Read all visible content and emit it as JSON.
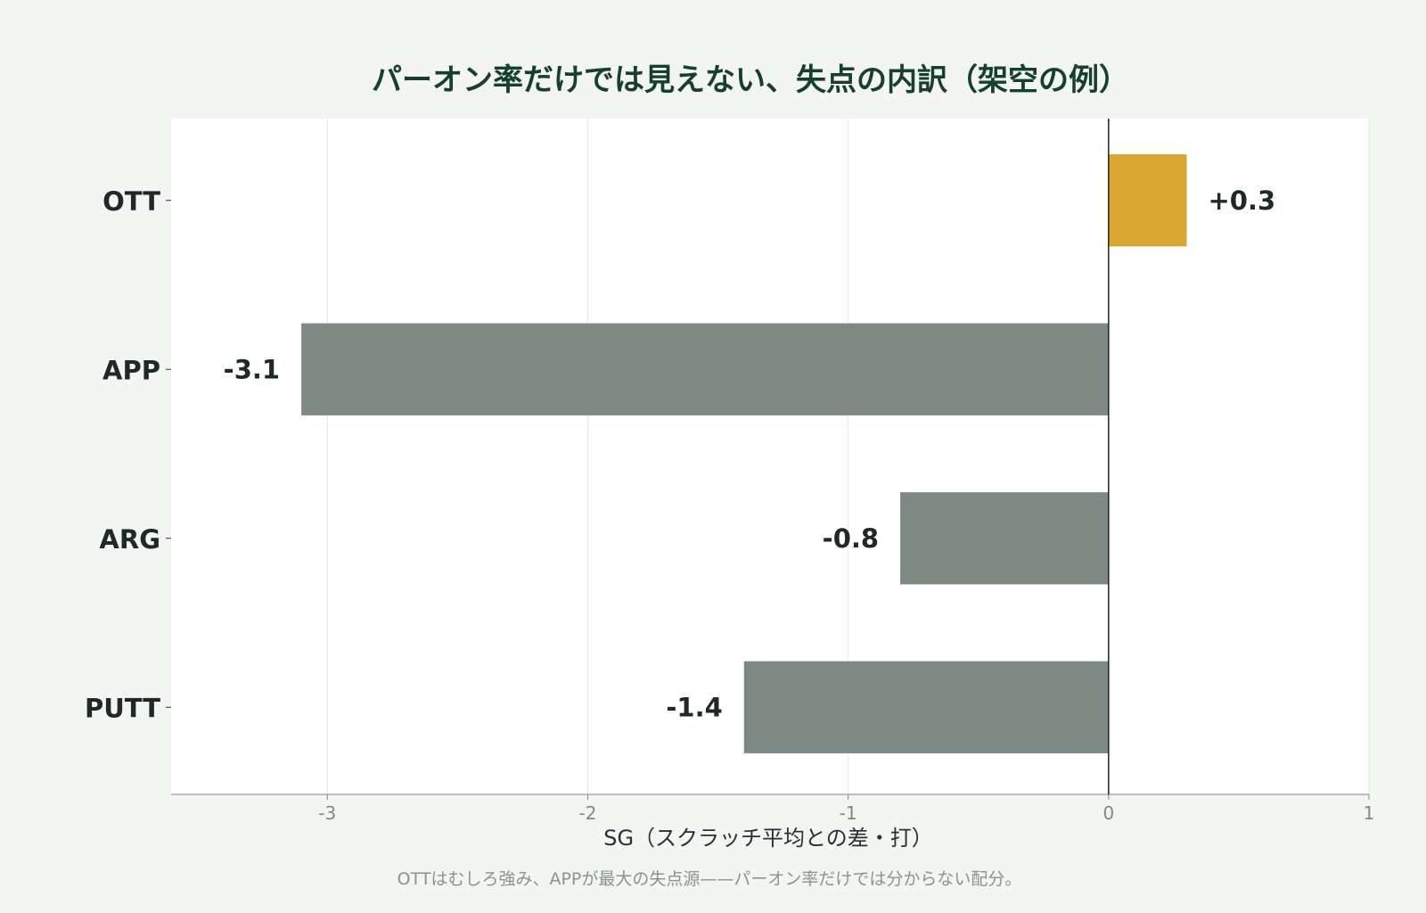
{
  "chart_data": {
    "type": "bar",
    "orientation": "horizontal",
    "title": "パーオン率だけでは見えない、失点の内訳（架空の例）",
    "xlabel": "SG（スクラッチ平均との差・打）",
    "caption": "OTTはむしろ強み、APPが最大の失点源——パーオン率だけでは分からない配分。",
    "categories": [
      "OTT",
      "APP",
      "ARG",
      "PUTT"
    ],
    "values": [
      0.3,
      -3.1,
      -0.8,
      -1.4
    ],
    "value_labels": [
      "+0.3",
      "-3.1",
      "-0.8",
      "-1.4"
    ],
    "xlim": [
      -3.6,
      1.0
    ],
    "xticks": [
      -3,
      -2,
      -1,
      0,
      1
    ],
    "xtick_labels": [
      "-3",
      "-2",
      "-1",
      "0",
      "1"
    ],
    "grid": true,
    "colors": {
      "positive": "#d9a62e",
      "negative": "#7d8a83",
      "zero_line": "#222222",
      "grid": "#e6e6e6",
      "plot_bg": "#ffffff"
    }
  }
}
